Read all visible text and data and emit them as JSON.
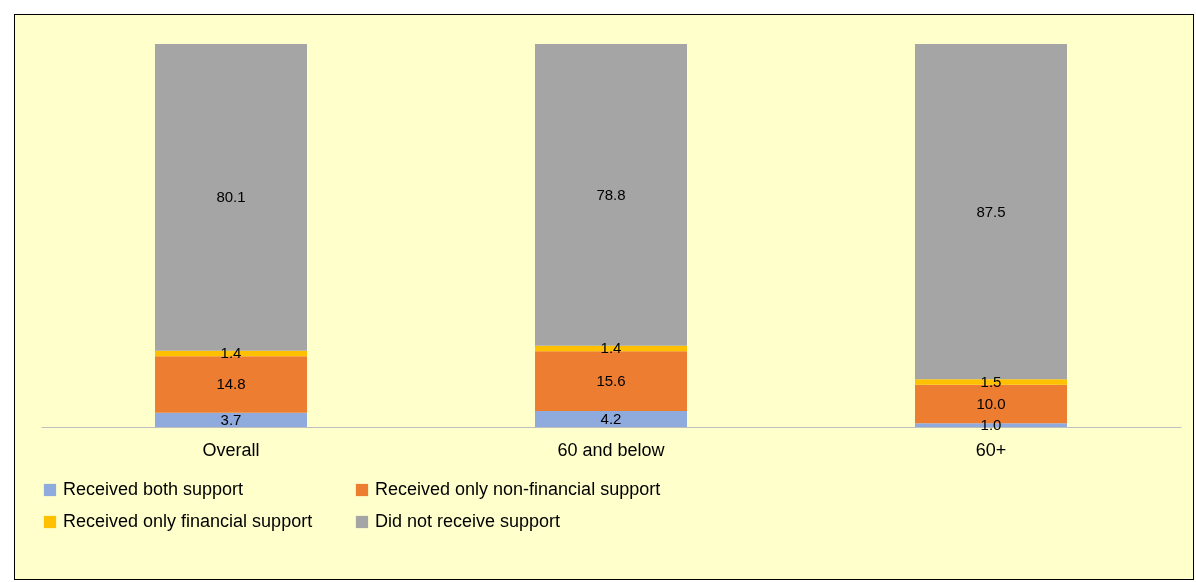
{
  "chart_data": {
    "type": "bar",
    "stacked": true,
    "legend": "bottom",
    "grid": false,
    "categories": [
      "Overall",
      "60 and below",
      "60+"
    ],
    "series": [
      {
        "name": "Received both support",
        "color": "#8faadc",
        "values": [
          3.7,
          4.2,
          1.0
        ],
        "value_labels": [
          "3.7",
          "4.2",
          "1.0"
        ]
      },
      {
        "name": "Received only non-financial support",
        "color": "#ed7d31",
        "values": [
          14.8,
          15.6,
          10.0
        ],
        "value_labels": [
          "14.8",
          "15.6",
          "10.0"
        ]
      },
      {
        "name": "Received only financial support",
        "color": "#ffc000",
        "values": [
          1.4,
          1.4,
          1.5
        ],
        "value_labels": [
          "1.4",
          "1.4",
          "1.5"
        ]
      },
      {
        "name": "Did not receive support",
        "color": "#a5a5a5",
        "values": [
          80.1,
          78.8,
          87.5
        ],
        "value_labels": [
          "80.1",
          "78.8",
          "87.5"
        ]
      }
    ]
  }
}
